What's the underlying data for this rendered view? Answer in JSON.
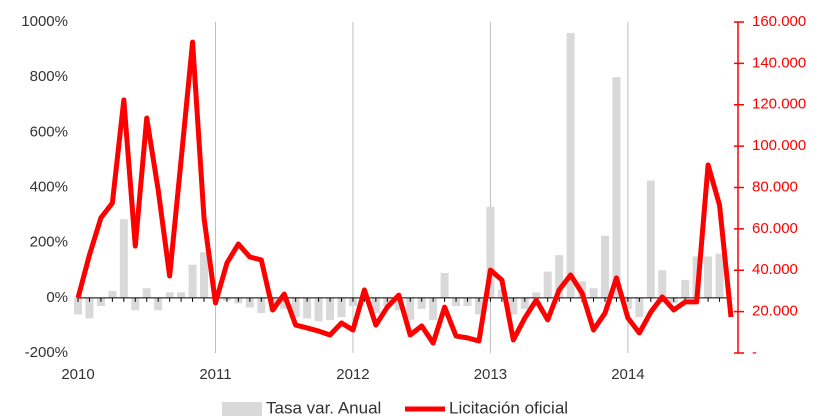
{
  "chart_data": {
    "type": "bar-line",
    "categories": [
      "2010",
      null,
      null,
      null,
      null,
      null,
      null,
      null,
      null,
      null,
      null,
      null,
      "2011",
      null,
      null,
      null,
      null,
      null,
      null,
      null,
      null,
      null,
      null,
      null,
      "2012",
      null,
      null,
      null,
      null,
      null,
      null,
      null,
      null,
      null,
      null,
      null,
      "2013",
      null,
      null,
      null,
      null,
      null,
      null,
      null,
      null,
      null,
      null,
      null,
      "2014",
      null,
      null,
      null,
      null,
      null,
      null,
      null,
      null,
      null
    ],
    "series": [
      {
        "name": "Tasa var. Anual",
        "type": "bar",
        "color": "#d9d9d9",
        "axis": "y",
        "values": [
          -60,
          -75,
          -30,
          25,
          285,
          -45,
          35,
          -45,
          20,
          20,
          120,
          165,
          -5,
          -10,
          -20,
          -35,
          -55,
          -50,
          -40,
          -70,
          -75,
          -85,
          -80,
          -70,
          -30,
          15,
          -55,
          -30,
          -45,
          -80,
          -40,
          -80,
          90,
          -30,
          -30,
          -60,
          330,
          30,
          -60,
          -40,
          20,
          95,
          155,
          960,
          60,
          35,
          225,
          800,
          -40,
          -70,
          425,
          100,
          -20,
          65,
          150,
          150,
          160,
          -5
        ]
      },
      {
        "name": "Licitación oficial",
        "type": "line",
        "color": "#ff0000",
        "axis": "y2",
        "values": [
          26600,
          47400,
          65300,
          72500,
          122300,
          51700,
          113600,
          78800,
          37200,
          93300,
          150300,
          65300,
          24200,
          43500,
          52700,
          46400,
          45000,
          20800,
          28500,
          13500,
          12100,
          10600,
          8700,
          14500,
          11100,
          30500,
          13500,
          22200,
          28000,
          8700,
          13100,
          4800,
          22200,
          8200,
          7300,
          5800,
          40100,
          35300,
          6300,
          16900,
          25600,
          16000,
          30500,
          37700,
          29000,
          11100,
          19300,
          36300,
          16900,
          9700,
          19800,
          27100,
          20800,
          24700,
          24700,
          90900,
          71500,
          17400
        ]
      }
    ],
    "ylim": [
      -200,
      1000
    ],
    "yticks": [
      {
        "value": -200,
        "label": "-200%"
      },
      {
        "value": 0,
        "label": "0%"
      },
      {
        "value": 200,
        "label": "200%"
      },
      {
        "value": 400,
        "label": "400%"
      },
      {
        "value": 600,
        "label": "600%"
      },
      {
        "value": 800,
        "label": "800%"
      },
      {
        "value": 1000,
        "label": "1000%"
      }
    ],
    "y2lim": [
      0,
      160000
    ],
    "y2ticks": [
      {
        "value": 0,
        "label": "-"
      },
      {
        "value": 20000,
        "label": "20.000"
      },
      {
        "value": 40000,
        "label": "40.000"
      },
      {
        "value": 60000,
        "label": "60.000"
      },
      {
        "value": 80000,
        "label": "80.000"
      },
      {
        "value": 100000,
        "label": "100.000"
      },
      {
        "value": 120000,
        "label": "120.000"
      },
      {
        "value": 140000,
        "label": "140.000"
      },
      {
        "value": 160000,
        "label": "160.000"
      }
    ],
    "y2_color": "#ff0000",
    "x_grid": true,
    "legend": "bottom"
  }
}
